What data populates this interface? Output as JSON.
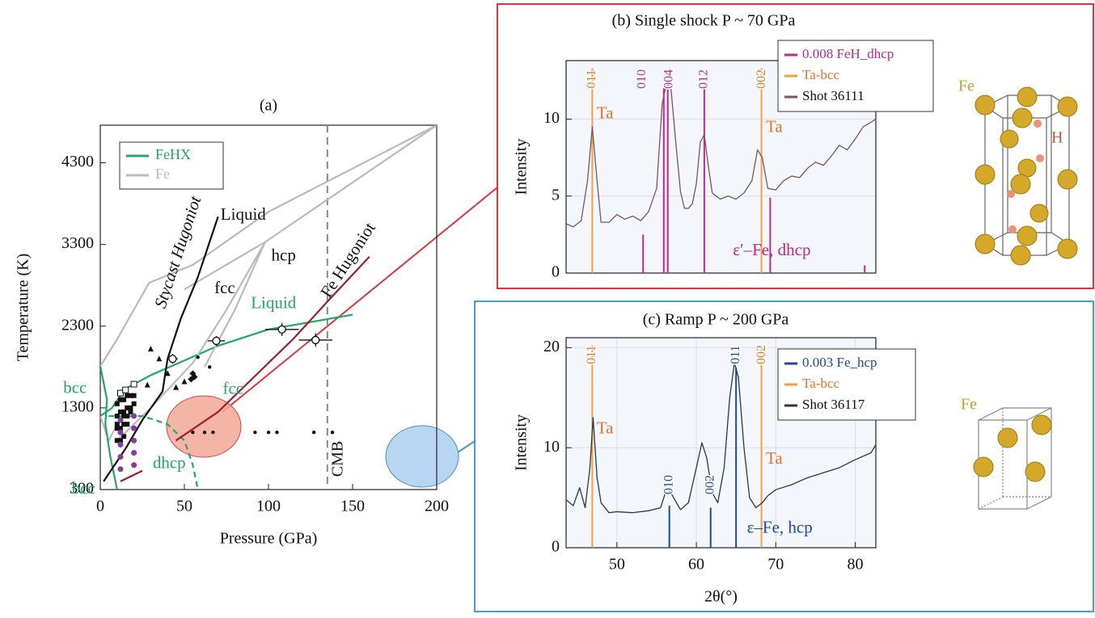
{
  "chart_data": [
    {
      "type": "line",
      "title": "(a)",
      "xlabel": "Pressure (GPa)",
      "ylabel": "Temperature (K)",
      "xlim": [
        0,
        200
      ],
      "ylim": [
        300,
        4760
      ],
      "xticks": [
        0,
        50,
        100,
        150,
        200
      ],
      "yticks": [
        300,
        1300,
        2300,
        3300,
        4300
      ],
      "grid": false,
      "series": [
        {
          "name": "FeHX",
          "color": "#1fa866",
          "style": "line",
          "x": [
            10,
            30,
            50,
            70,
            100,
            125,
            150
          ],
          "values": [
            1480,
            1700,
            1880,
            2060,
            2260,
            2350,
            2440
          ]
        },
        {
          "name": "Fe",
          "color": "#bbbbbb",
          "style": "line",
          "x": [
            0,
            10,
            29,
            55,
            100,
            200
          ],
          "values": [
            1810,
            2140,
            2830,
            3050,
            3700,
            4760
          ]
        },
        {
          "color": "#bbbbbb",
          "style": "line",
          "x": [
            10,
            30,
            55,
            75,
            98,
            200
          ],
          "values": [
            900,
            1300,
            1850,
            2500,
            3330,
            4760
          ]
        },
        {
          "color": "#bbbbbb",
          "style": "line",
          "x": [
            50,
            98,
            80,
            62
          ],
          "values": [
            2750,
            3330,
            2500,
            1800
          ]
        },
        {
          "color": "#bbbbbb",
          "style": "line",
          "x": [
            0,
            5,
            10
          ],
          "values": [
            1200,
            900,
            1100
          ]
        },
        {
          "color": "#1fa866",
          "style": "line",
          "x": [
            0,
            4,
            3,
            6,
            10
          ],
          "values": [
            1810,
            1400,
            1100,
            700,
            300
          ]
        },
        {
          "color": "#1fa866",
          "style": "line",
          "x": [
            0,
            7,
            12
          ],
          "values": [
            1200,
            1300,
            1450
          ]
        },
        {
          "color": "#1fa866",
          "style": "line",
          "dash": true,
          "x": [
            5,
            25,
            40,
            50,
            55,
            58
          ],
          "values": [
            1200,
            1200,
            1100,
            900,
            600,
            300
          ]
        },
        {
          "color": "#111111",
          "style": "line",
          "x": [
            2,
            15,
            25,
            37,
            40,
            48,
            58,
            70
          ],
          "values": [
            400,
            800,
            1150,
            1500,
            1900,
            2400,
            2900,
            3640
          ]
        },
        {
          "color": "#a01c30",
          "style": "line",
          "x": [
            12,
            25
          ],
          "values": [
            400,
            530
          ]
        },
        {
          "color": "#a01c30",
          "style": "line",
          "x": [
            45,
            70,
            95,
            115,
            135,
            160
          ],
          "values": [
            900,
            1250,
            1750,
            2150,
            2600,
            3150
          ]
        },
        {
          "color": "#111111",
          "style": "scatter",
          "marker": "square",
          "x": [
            10,
            12,
            14,
            10,
            12,
            14,
            16,
            10,
            12,
            14,
            16,
            18,
            10,
            12,
            14,
            16,
            18,
            20,
            10,
            12,
            14,
            16,
            18,
            20
          ],
          "values": [
            900,
            900,
            950,
            1050,
            1050,
            1100,
            1100,
            1200,
            1250,
            1250,
            1300,
            1300,
            1350,
            1400,
            1400,
            1450,
            1450,
            1450,
            1100,
            1150,
            1200,
            1200,
            1250,
            1350
          ]
        },
        {
          "color": "#111111",
          "style": "scatter",
          "marker": "open-square",
          "x": [
            12,
            15,
            20
          ],
          "values": [
            1480,
            1520,
            1590
          ]
        },
        {
          "color": "#8a3a9a",
          "style": "scatter",
          "marker": "circle",
          "x": [
            12,
            12,
            12,
            12,
            12,
            20,
            20,
            20,
            20,
            20
          ],
          "values": [
            550,
            700,
            850,
            1000,
            1150,
            600,
            750,
            900,
            1050,
            1200
          ]
        },
        {
          "color": "#111111",
          "style": "scatter",
          "marker": "triangle",
          "x": [
            30,
            40,
            28,
            50,
            35,
            45
          ],
          "values": [
            2020,
            1720,
            1580,
            1620,
            1900,
            1550
          ]
        },
        {
          "color": "#111111",
          "style": "scatter",
          "marker": "diamond",
          "x": [
            55,
            56,
            54
          ],
          "values": [
            1720,
            1680,
            1650
          ]
        },
        {
          "color": "#111111",
          "style": "scatter",
          "marker": "dot",
          "x": [
            55,
            62,
            67,
            92,
            100,
            105,
            127,
            138,
            58,
            65
          ],
          "values": [
            1000,
            1000,
            1000,
            1000,
            1000,
            1000,
            1000,
            1000,
            1920,
            1800
          ]
        },
        {
          "color": "#111111",
          "style": "scatter",
          "marker": "open-circle",
          "x": [
            43,
            69,
            108,
            128
          ],
          "values": [
            1900,
            2120,
            2260,
            2130
          ],
          "xerr": [
            3,
            5,
            10,
            10
          ],
          "yerr": [
            60,
            60,
            80,
            80
          ]
        }
      ],
      "vlines": [
        {
          "x": 135,
          "label": "CMB",
          "color": "#888888"
        }
      ],
      "annotations": [
        {
          "text": "Liquid",
          "x": 85,
          "y": 3650,
          "color": "#111111",
          "angle": 0
        },
        {
          "text": "hcp",
          "x": 109,
          "y": 3150,
          "color": "#111111",
          "angle": 0
        },
        {
          "text": "fcc",
          "x": 74,
          "y": 2750,
          "color": "#111111",
          "angle": 0
        },
        {
          "text": "Liquid",
          "x": 103,
          "y": 2570,
          "color": "#1fa866",
          "angle": 0
        },
        {
          "text": "fcc",
          "x": 79,
          "y": 1520,
          "color": "#1fa866",
          "angle": 0
        },
        {
          "text": "bcc",
          "x": -15,
          "y": 1530,
          "color": "#1fa866",
          "angle": 0
        },
        {
          "text": "bcc",
          "x": -10,
          "y": 300,
          "color": "#1fa866",
          "angle": 0
        },
        {
          "text": "dhcp",
          "x": 41,
          "y": 610,
          "color": "#1fa866",
          "angle": 0
        },
        {
          "text": "Stycast Hugoniot",
          "x": 47,
          "y": 3200,
          "color": "#111111",
          "angle": -72,
          "italic": true
        },
        {
          "text": "Fe Hugoniot",
          "x": 148,
          "y": 3100,
          "color": "#111111",
          "angle": -57
        }
      ]
    },
    {
      "type": "line",
      "title": "(b) Single shock P ~ 70 GPa",
      "ylabel": "Intensity",
      "xlim": [
        43.6,
        82.6
      ],
      "ylim": [
        0,
        13.8
      ],
      "yticks": [
        0,
        5,
        10
      ],
      "grid": true,
      "series": [
        {
          "name": "0.008 FeH_dhcp",
          "color": "#c0288a",
          "style": "stick",
          "x": [
            53.3,
            55.9,
            56.4,
            61,
            69.3,
            81.2
          ],
          "values": [
            2.5,
            12,
            12.3,
            12,
            4.9,
            0.5
          ]
        },
        {
          "name": "Ta-bcc",
          "color": "#f0a040",
          "style": "stick",
          "x": [
            46.9,
            68.2
          ],
          "values": [
            13.3,
            13.3
          ]
        },
        {
          "name": "Shot 36111",
          "color": "#7a5560",
          "style": "line",
          "x": [
            43.6,
            44.5,
            45.5,
            46.3,
            46.9,
            47.5,
            48,
            49,
            50,
            51,
            52,
            53,
            54,
            55,
            55.7,
            56.3,
            56.8,
            57.5,
            58,
            58.5,
            59,
            59.5,
            60,
            60.5,
            61,
            61.5,
            62,
            63,
            64,
            65,
            66,
            67,
            67.7,
            68.3,
            69,
            70,
            71,
            72,
            73,
            74,
            75,
            76,
            77,
            78,
            79,
            80,
            81,
            82,
            82.6
          ],
          "values": [
            3.2,
            3.0,
            3.4,
            6,
            9.5,
            6,
            3.3,
            3.3,
            3.8,
            3.5,
            3.7,
            3.4,
            4.0,
            5.5,
            11,
            12.5,
            12,
            8,
            5.3,
            4.2,
            4.2,
            4.5,
            5.8,
            8.5,
            9,
            7,
            5.2,
            4.8,
            5.0,
            4.8,
            5.2,
            6,
            8,
            7.5,
            5.5,
            5.4,
            6.0,
            6.3,
            6.2,
            6.8,
            7.2,
            7.0,
            7.6,
            8.3,
            8.0,
            8.7,
            9.5,
            9.8,
            10.0
          ]
        }
      ],
      "peak_labels": [
        {
          "text": "011",
          "x": 46.9,
          "y": 12.6,
          "color": "#e8742a"
        },
        {
          "text": "010",
          "x": 53.2,
          "y": 12.6,
          "color": "#c0288a"
        },
        {
          "text": "004",
          "x": 56.6,
          "y": 12.6,
          "color": "#c0288a"
        },
        {
          "text": "012",
          "x": 61,
          "y": 12.6,
          "color": "#c0288a"
        },
        {
          "text": "002",
          "x": 68.3,
          "y": 12.6,
          "color": "#e8742a"
        }
      ],
      "annotations": [
        {
          "text": "Ta",
          "x": 48.5,
          "y": 10.3,
          "color": "#e8742a",
          "angle": 0
        },
        {
          "text": "Ta",
          "x": 69.8,
          "y": 9.4,
          "color": "#e8742a",
          "angle": 0
        },
        {
          "text": "ε′–Fe, dhcp",
          "x": 69.5,
          "y": 1.4,
          "color": "#c0288a",
          "angle": 0
        }
      ],
      "crystal_labels": [
        "Fe",
        "H"
      ]
    },
    {
      "type": "line",
      "title": "(c) Ramp P ~ 200 GPa",
      "xlabel": "2θ(°)",
      "ylabel": "Intensity",
      "xlim": [
        43.6,
        82.6
      ],
      "ylim": [
        0,
        21
      ],
      "xticks": [
        50,
        60,
        70,
        80
      ],
      "yticks": [
        0,
        10,
        20
      ],
      "grid": true,
      "series": [
        {
          "name": "0.003 Fe_hcp",
          "color": "#1c4aa0",
          "style": "stick",
          "x": [
            56.6,
            61.8,
            65
          ],
          "values": [
            4.2,
            4.0,
            18
          ]
        },
        {
          "name": "Ta-bcc",
          "color": "#f0a040",
          "style": "stick",
          "x": [
            46.9,
            68.2
          ],
          "values": [
            20.2,
            20.2
          ]
        },
        {
          "name": "Shot 36117",
          "color": "#2a3a3a",
          "style": "line",
          "x": [
            43.6,
            44.5,
            45.3,
            46,
            46.6,
            47,
            47.5,
            48,
            49,
            50,
            52,
            54,
            55.5,
            56.3,
            57,
            58,
            59,
            60,
            60.7,
            61.3,
            62,
            62.7,
            63.5,
            64.2,
            64.8,
            65.3,
            66,
            66.7,
            67.5,
            68.3,
            69,
            70,
            72,
            74,
            76,
            78,
            80,
            82,
            82.6
          ],
          "values": [
            4.8,
            4.2,
            6,
            4.0,
            8,
            13,
            7,
            4.5,
            3.5,
            3.6,
            3.5,
            3.7,
            4.0,
            6.0,
            5.2,
            3.8,
            4.5,
            8,
            10.5,
            9,
            5.5,
            4.5,
            8,
            15,
            18.5,
            17,
            10,
            5,
            4.0,
            4.5,
            5.2,
            5.8,
            6.3,
            7.0,
            7.5,
            8.0,
            8.8,
            9.5,
            10.3
          ]
        }
      ],
      "peak_labels": [
        {
          "text": "011",
          "x": 46.9,
          "y": 19.3,
          "color": "#e8742a"
        },
        {
          "text": "010",
          "x": 56.6,
          "y": 6.3,
          "color": "#1c4aa0"
        },
        {
          "text": "002",
          "x": 61.8,
          "y": 6.3,
          "color": "#1c4aa0"
        },
        {
          "text": "011",
          "x": 65,
          "y": 19.3,
          "color": "#1c4aa0"
        },
        {
          "text": "002",
          "x": 68.3,
          "y": 19.3,
          "color": "#e8742a"
        }
      ],
      "annotations": [
        {
          "text": "Ta",
          "x": 48.5,
          "y": 11.8,
          "color": "#e8742a",
          "angle": 0
        },
        {
          "text": "Ta",
          "x": 69.8,
          "y": 8.8,
          "color": "#e8742a",
          "angle": 0
        },
        {
          "text": "ε–Fe, hcp",
          "x": 70.5,
          "y": 1.9,
          "color": "#1c4aa0",
          "angle": 0
        }
      ],
      "crystal_labels": [
        "Fe"
      ]
    }
  ]
}
